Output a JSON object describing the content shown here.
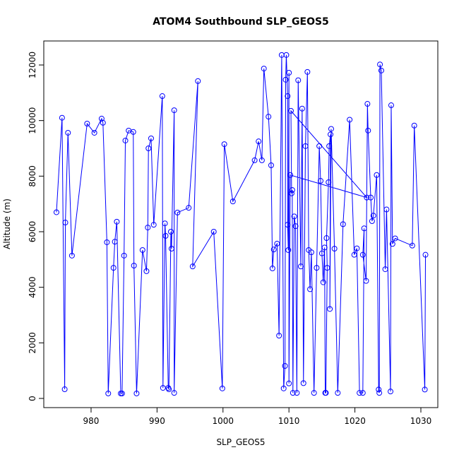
{
  "chart_data": {
    "type": "line-points",
    "title": "ATOM4 Southbound SLP_GEOS5",
    "xlabel": "SLP_GEOS5",
    "ylabel": "Altitude (m)",
    "xlim": [
      972.83,
      1032.57
    ],
    "ylim": [
      -330,
      12864
    ],
    "xticks": [
      980,
      990,
      1000,
      1010,
      1020,
      1030
    ],
    "yticks": [
      0,
      2000,
      4000,
      6000,
      8000,
      10000,
      12000
    ],
    "series": [
      {
        "color": "#0000ff",
        "x": [
          974.75,
          975.6,
          976.0,
          976.1,
          976.5,
          977.1,
          979.4,
          980.5,
          981.6,
          981.8,
          982.4,
          982.6,
          983.4,
          983.6,
          983.9,
          984.5,
          984.7,
          985.0,
          985.2,
          985.7,
          986.4,
          986.5,
          986.9,
          987.8,
          988.4,
          988.6,
          988.7,
          989.1,
          989.5,
          990.8,
          990.9,
          991.2,
          991.3,
          991.7,
          991.8,
          992.1,
          992.2,
          992.6,
          992.6,
          993.1,
          994.8,
          996.2,
          995.4,
          998.6,
          999.9,
          1000.2,
          1001.5,
          1004.8,
          1005.4,
          1005.9,
          1006.2,
          1006.9,
          1007.3,
          1007.5,
          1007.7,
          1008.2,
          1008.5,
          1008.9,
          1009.2,
          1009.4,
          1009.5,
          1009.6,
          1009.8,
          1009.8,
          1009.9,
          1010.0,
          1010.0,
          1010.2,
          1021.8,
          1010.3,
          1010.4,
          1010.5,
          1010.6,
          1010.8,
          1011.0,
          1011.2,
          1011.4,
          1011.8,
          1012.0,
          1012.2,
          1012.5,
          1012.8,
          1013.0,
          1013.2,
          1013.4,
          1013.8,
          1014.2,
          1014.6,
          1014.8,
          1015.0,
          1015.2,
          1015.4,
          1015.5,
          1015.6,
          1015.8,
          1015.7,
          1016.0,
          1016.1,
          1016.3,
          1016.2,
          1016.4,
          1016.9,
          1017.4,
          1018.2,
          1019.2,
          1019.9,
          1020.3,
          1020.7,
          1021.2,
          1021.4,
          1021.2,
          1021.7,
          1021.9,
          1022.0,
          1022.4,
          1022.6,
          1022.8,
          1023.3,
          1023.6,
          1023.7,
          1023.8,
          1024.0,
          1024.6,
          1024.8,
          1025.4,
          1025.5,
          1025.7,
          1026.1,
          1028.7,
          1029.0,
          1030.6,
          1030.7
        ],
        "values": [
          6700,
          10100,
          330,
          6330,
          9560,
          5140,
          9890,
          9560,
          10070,
          9920,
          5620,
          180,
          4700,
          5640,
          6360,
          180,
          180,
          5140,
          9280,
          9640,
          9590,
          4780,
          180,
          5340,
          4580,
          6150,
          9000,
          9360,
          6250,
          10880,
          380,
          6300,
          5850,
          380,
          330,
          6000,
          5390,
          10370,
          200,
          6690,
          6860,
          11420,
          4750,
          6000,
          360,
          9150,
          7090,
          8570,
          9250,
          8570,
          11870,
          10140,
          8390,
          4680,
          5360,
          5570,
          2260,
          12360,
          360,
          1170,
          11470,
          12360,
          10880,
          6250,
          5340,
          11720,
          540,
          8040,
          7230,
          10350,
          7380,
          7500,
          200,
          6550,
          6200,
          200,
          11450,
          4750,
          10430,
          550,
          9080,
          11750,
          5340,
          3930,
          5260,
          200,
          4700,
          9080,
          7830,
          5220,
          4180,
          5430,
          200,
          200,
          4700,
          5770,
          7780,
          9080,
          9500,
          3220,
          9700,
          5390,
          200,
          6270,
          10030,
          5170,
          5400,
          200,
          200,
          6120,
          5170,
          4230,
          10600,
          9640,
          7230,
          6380,
          6580,
          8040,
          320,
          200,
          12020,
          11800,
          4650,
          6800,
          250,
          10550,
          5560,
          5760,
          5500,
          9820,
          320,
          5170
        ]
      }
    ]
  }
}
